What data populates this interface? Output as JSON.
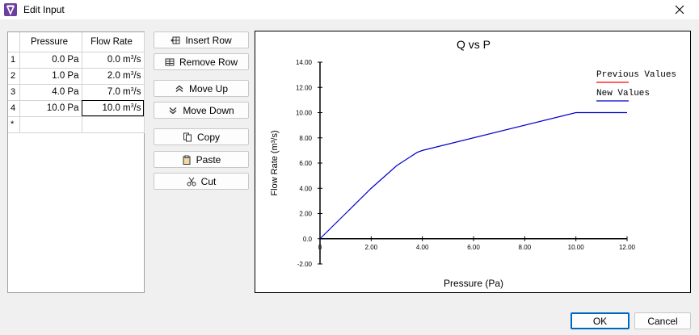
{
  "window": {
    "title": "Edit Input",
    "close_label": "close"
  },
  "grid": {
    "headers": [
      "Pressure",
      "Flow Rate"
    ],
    "rows": [
      {
        "num": "1",
        "pressure": "0.0 Pa",
        "flow": "0.0 m",
        "flow_unit_tail": "/s"
      },
      {
        "num": "2",
        "pressure": "1.0 Pa",
        "flow": "2.0 m",
        "flow_unit_tail": "/s"
      },
      {
        "num": "3",
        "pressure": "4.0 Pa",
        "flow": "7.0 m",
        "flow_unit_tail": "/s"
      },
      {
        "num": "4",
        "pressure": "10.0 Pa",
        "flow": "10.0 m",
        "flow_unit_tail": "/s"
      }
    ],
    "unit_exp": "3",
    "new_row_marker": "*"
  },
  "buttons": {
    "insert_row": "Insert Row",
    "remove_row": "Remove Row",
    "move_up": "Move Up",
    "move_down": "Move Down",
    "copy": "Copy",
    "paste": "Paste",
    "cut": "Cut",
    "ok": "OK",
    "cancel": "Cancel"
  },
  "colors": {
    "accent": "#0067c0",
    "previous_series": "#ff0000",
    "new_series": "#0000cc"
  },
  "chart_data": {
    "type": "line",
    "title": "Q vs P",
    "xlabel": "Pressure (Pa)",
    "ylabel": "Flow Rate (m³/s)",
    "xlim": [
      0,
      12
    ],
    "ylim": [
      -2,
      14
    ],
    "x_ticks": [
      "0",
      "2.00",
      "4.00",
      "6.00",
      "8.00",
      "10.00",
      "12.00"
    ],
    "x_tick_values": [
      0,
      2,
      4,
      6,
      8,
      10,
      12
    ],
    "y_ticks": [
      "-2.00",
      "0.0",
      "2.00",
      "4.00",
      "6.00",
      "8.00",
      "10.00",
      "12.00",
      "14.00"
    ],
    "y_tick_values": [
      -2,
      0,
      2,
      4,
      6,
      8,
      10,
      12,
      14
    ],
    "legend_position": "top-right",
    "grid": false,
    "series": [
      {
        "name": "Previous Values",
        "x": [],
        "y": []
      },
      {
        "name": "New Values",
        "x": [
          0,
          1,
          2,
          3,
          3.8,
          4,
          10,
          12
        ],
        "y": [
          0,
          2.0,
          4.0,
          5.8,
          6.85,
          7.0,
          10.0,
          10.0
        ]
      }
    ]
  }
}
